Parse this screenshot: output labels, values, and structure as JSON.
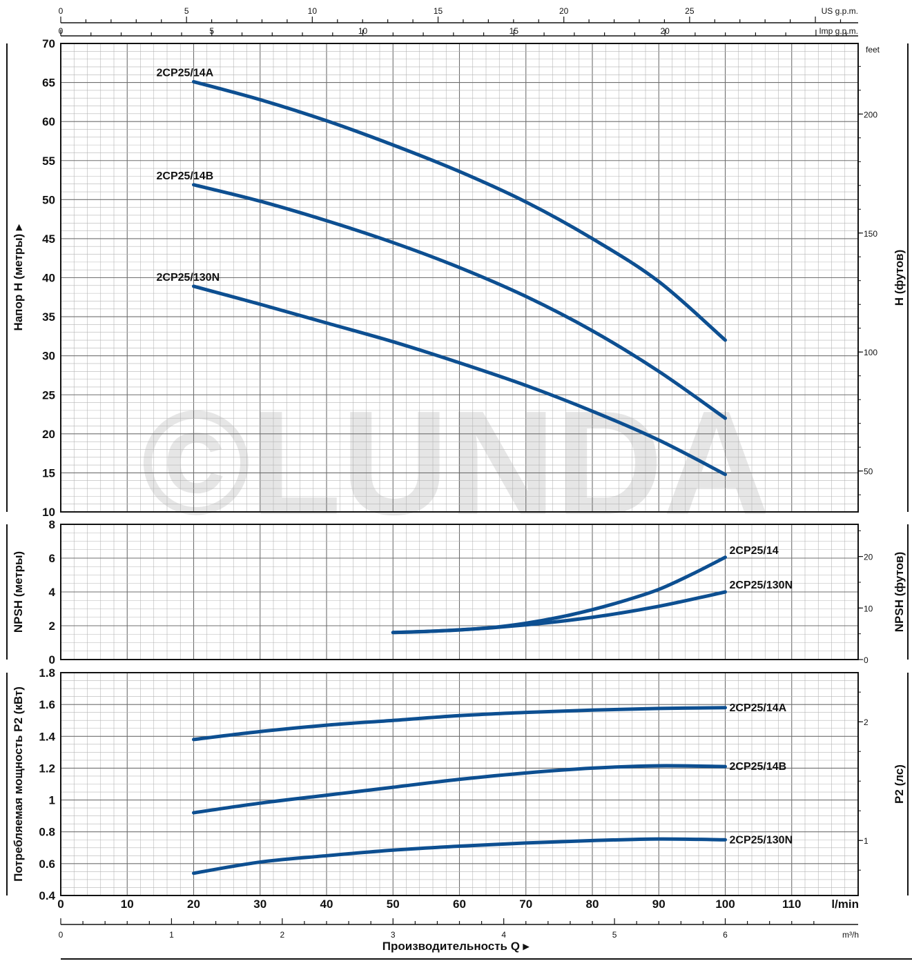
{
  "colors": {
    "curve": "#0d4f91",
    "grid_minor": "#b4b4b4",
    "grid_major": "#6e6e6e",
    "frame": "#111111",
    "watermark": "#e6e6e6"
  },
  "watermark": {
    "text": "©LUNDA"
  },
  "chart_data": [
    {
      "type": "line",
      "panel": "head",
      "ylabel_left": "Напор H (метры)",
      "ylabel_right": "H (футов)",
      "ylim": [
        10,
        70
      ],
      "y_ticks": [
        "70",
        "65",
        "60",
        "55",
        "50",
        "45",
        "40",
        "35",
        "30",
        "25",
        "20",
        "15",
        "10"
      ],
      "right_axis": {
        "unit_label": "feet",
        "ticks": [
          "200",
          "150",
          "100",
          "50"
        ],
        "tick_values": [
          200,
          150,
          100,
          50
        ],
        "factor": 3.2808
      },
      "series": [
        {
          "name": "2CP25/14A",
          "x": [
            20,
            30,
            40,
            50,
            60,
            70,
            80,
            90,
            100
          ],
          "y": [
            65.1,
            62.8,
            60.1,
            57.0,
            53.6,
            49.7,
            45.0,
            39.5,
            32.0
          ]
        },
        {
          "name": "2CP25/14B",
          "x": [
            20,
            30,
            40,
            50,
            60,
            70,
            80,
            90,
            100
          ],
          "y": [
            51.9,
            49.8,
            47.3,
            44.5,
            41.3,
            37.6,
            33.2,
            28.0,
            22.0
          ]
        },
        {
          "name": "2CP25/130N",
          "x": [
            20,
            30,
            40,
            50,
            60,
            70,
            80,
            90,
            100
          ],
          "y": [
            38.9,
            36.6,
            34.2,
            31.8,
            29.1,
            26.2,
            22.9,
            19.2,
            14.8
          ]
        }
      ]
    },
    {
      "type": "line",
      "panel": "npsh",
      "ylabel_left": "NPSH (метры)",
      "ylabel_right": "NPSH (футов)",
      "ylim": [
        0,
        8
      ],
      "y_ticks": [
        "8",
        "6",
        "4",
        "2",
        "0"
      ],
      "right_axis": {
        "ticks": [
          "20",
          "10",
          "0"
        ],
        "tick_values": [
          20,
          10,
          0
        ],
        "factor": 3.2808
      },
      "series": [
        {
          "name": "2CP25/14",
          "x": [
            50,
            55,
            60,
            65,
            70,
            75,
            80,
            85,
            90,
            95,
            100
          ],
          "y": [
            1.6,
            1.66,
            1.76,
            1.9,
            2.15,
            2.5,
            2.95,
            3.5,
            4.15,
            5.05,
            6.05
          ]
        },
        {
          "name": "2CP25/130N",
          "x": [
            50,
            60,
            70,
            80,
            90,
            100
          ],
          "y": [
            1.6,
            1.75,
            2.05,
            2.5,
            3.15,
            4.0
          ]
        }
      ]
    },
    {
      "type": "line",
      "panel": "power",
      "ylabel_left": "Потребляемая мощность P2 (кВт)",
      "ylabel_right": "P2 (лс)",
      "ylim": [
        0.4,
        1.8
      ],
      "y_ticks": [
        "1.8",
        "1.6",
        "1.4",
        "1.2",
        "1",
        "0.8",
        "0.6",
        "0.4"
      ],
      "right_axis": {
        "ticks": [
          "2",
          "1"
        ],
        "tick_values": [
          2,
          1
        ],
        "factor": 1.341
      },
      "series": [
        {
          "name": "2CP25/14A",
          "x": [
            20,
            30,
            40,
            50,
            60,
            70,
            80,
            90,
            100
          ],
          "y": [
            1.38,
            1.43,
            1.47,
            1.5,
            1.53,
            1.55,
            1.565,
            1.575,
            1.58
          ]
        },
        {
          "name": "2CP25/14B",
          "x": [
            20,
            30,
            40,
            50,
            60,
            70,
            80,
            90,
            100
          ],
          "y": [
            0.92,
            0.98,
            1.03,
            1.08,
            1.13,
            1.17,
            1.2,
            1.215,
            1.21
          ]
        },
        {
          "name": "2CP25/130N",
          "x": [
            20,
            30,
            40,
            50,
            60,
            70,
            80,
            90,
            100
          ],
          "y": [
            0.54,
            0.61,
            0.65,
            0.685,
            0.71,
            0.73,
            0.745,
            0.755,
            0.75
          ]
        }
      ]
    }
  ],
  "x_axes": {
    "lmin": {
      "label": "l/min",
      "xlim": [
        0,
        120
      ],
      "ticks": [
        "0",
        "10",
        "20",
        "30",
        "40",
        "50",
        "60",
        "70",
        "80",
        "90",
        "100",
        "110"
      ]
    },
    "m3h": {
      "label": "m³/h",
      "ticks": [
        "0",
        "1",
        "2",
        "3",
        "4",
        "5",
        "6"
      ]
    },
    "us_gpm": {
      "label": "US g.p.m.",
      "ticks": [
        "0",
        "5",
        "10",
        "15",
        "20",
        "25"
      ]
    },
    "imp_gpm": {
      "label": "Imp g.p.m.",
      "ticks": [
        "0",
        "5",
        "10",
        "15",
        "20"
      ]
    },
    "bottom_title": "Производительность Q"
  }
}
